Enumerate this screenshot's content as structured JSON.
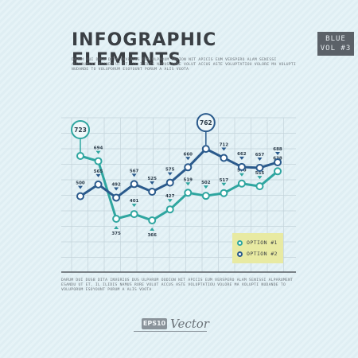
{
  "header": {
    "title": "INFOGRAPHIC ELEMENTS",
    "tag_line1": "BLUE",
    "tag_line2": "VOL #3"
  },
  "blurb_top": "DARUM DUI DUSB DITA INVERIOS DUS ULPARUM OODION NIT APICIS EUM VERSPERO ALAM SENISSI ALPARUMENT ESANDU UT ET, IL ILIDIS NAMUS RURE VOLUT ACCUS ASTE VOLUPTATIOU VOLORE MA VOLUPTI NUDANDE TO VOLUPORUM ESOYOUNT PORUM A ALIS VOOTA",
  "blurb_bottom": "DARUM DUI DUSB DITA INVERIOS DUS ULPARUM OODION NIT APICIS EUM VERSPERO ALAM SENISSI ALPARUMENT ESANDU UT ET, IL ILIDIS NAMUS RURE VOLUT ACCUS ASTE VOLUPTATIOU VOLORE MA VOLUPTI NUDANDE TO VOLUPORUM ESOYOUNT PORUM A ALIS VOOTA",
  "footer": {
    "badge": "EPS10",
    "word": "Vector"
  },
  "colors": {
    "teal": "#2fa6a0",
    "navy": "#2a5a8c",
    "grid": "#c3d3da",
    "axis": "#3a3f44"
  },
  "chart_data": {
    "type": "line",
    "grid": true,
    "legend_position": "bottom-right",
    "legend": [
      {
        "label": "OPTION #1",
        "color": "#2fa6a0"
      },
      {
        "label": "OPTION #2",
        "color": "#2a5a8c"
      }
    ],
    "x_count": 12,
    "ylim": [
      300,
      800
    ],
    "series": [
      {
        "name": "OPTION #1",
        "color": "#2fa6a0",
        "values": [
          723,
          694,
          375,
          401,
          366,
          427,
          519,
          502,
          517,
          570,
          555,
          638
        ],
        "callouts": [
          723
        ]
      },
      {
        "name": "OPTION #2",
        "color": "#2a5a8c",
        "values": [
          500,
          565,
          492,
          567,
          525,
          575,
          660,
          762,
          712,
          662,
          657,
          688
        ],
        "callouts": [
          762
        ]
      }
    ]
  }
}
